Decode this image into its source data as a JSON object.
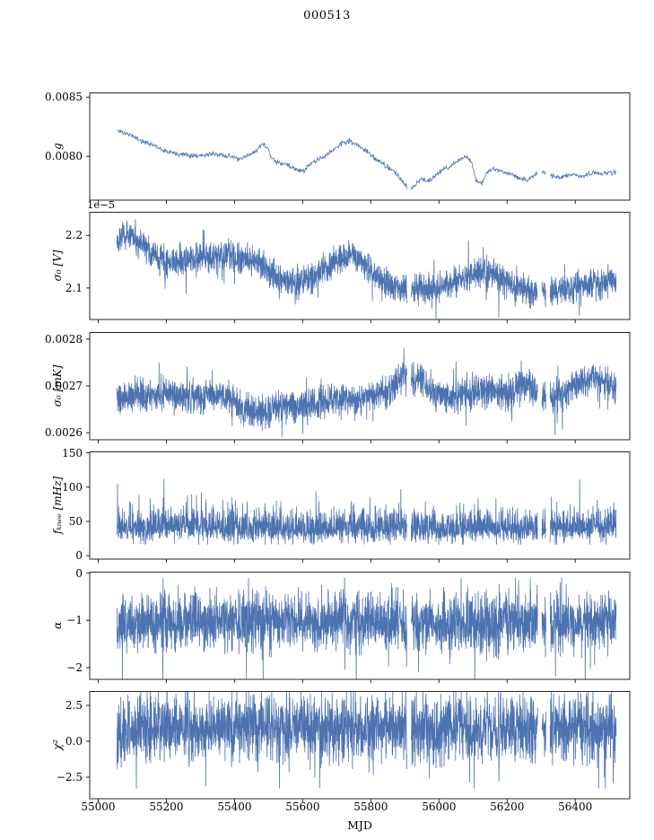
{
  "chart_data": {
    "type": "line",
    "title": "000513",
    "xlabel": "MJD",
    "line_color": "#4c72b0",
    "xlim": [
      54975,
      56560
    ],
    "xticks": [
      55000,
      55200,
      55400,
      55600,
      55800,
      56000,
      56200,
      56400
    ],
    "xtick_labels": [
      "55000",
      "55200",
      "55400",
      "55600",
      "55800",
      "56000",
      "56200",
      "56400"
    ],
    "x_range_of_data": [
      55055,
      56520
    ],
    "gaps": [
      [
        55906,
        55918
      ],
      [
        56290,
        56302
      ],
      [
        56314,
        56326
      ]
    ],
    "panels": [
      {
        "ylabel": "g",
        "offset_text": "",
        "yticks": [
          0.0085,
          0.008
        ],
        "ytick_labels": [
          "0.0085",
          "0.0080"
        ],
        "ylim": [
          0.00763,
          0.00854
        ],
        "noise_amp": 1e-05,
        "tail_prob": 0.02,
        "samples": 900,
        "seed": 11,
        "trend": [
          [
            55055,
            0.00822
          ],
          [
            55075,
            0.0082
          ],
          [
            55095,
            0.00818
          ],
          [
            55115,
            0.00815
          ],
          [
            55135,
            0.00812
          ],
          [
            55160,
            0.0081
          ],
          [
            55185,
            0.00806
          ],
          [
            55210,
            0.00804
          ],
          [
            55240,
            0.00802
          ],
          [
            55270,
            0.00801
          ],
          [
            55300,
            0.00801
          ],
          [
            55330,
            0.00802
          ],
          [
            55360,
            0.00801
          ],
          [
            55390,
            0.008
          ],
          [
            55415,
            0.00797
          ],
          [
            55435,
            0.008
          ],
          [
            55460,
            0.00804
          ],
          [
            55480,
            0.0081
          ],
          [
            55495,
            0.00808
          ],
          [
            55510,
            0.00798
          ],
          [
            55530,
            0.00794
          ],
          [
            55555,
            0.00793
          ],
          [
            55580,
            0.00789
          ],
          [
            55600,
            0.00787
          ],
          [
            55620,
            0.00793
          ],
          [
            55645,
            0.00797
          ],
          [
            55670,
            0.00801
          ],
          [
            55695,
            0.00807
          ],
          [
            55720,
            0.00812
          ],
          [
            55745,
            0.00812
          ],
          [
            55765,
            0.00809
          ],
          [
            55790,
            0.00804
          ],
          [
            55815,
            0.00797
          ],
          [
            55840,
            0.00793
          ],
          [
            55865,
            0.00788
          ],
          [
            55885,
            0.00782
          ],
          [
            55900,
            0.00775
          ],
          [
            55915,
            0.00772
          ],
          [
            55930,
            0.00776
          ],
          [
            55950,
            0.00781
          ],
          [
            55970,
            0.00779
          ],
          [
            55990,
            0.00784
          ],
          [
            56010,
            0.00788
          ],
          [
            56035,
            0.00792
          ],
          [
            56060,
            0.00797
          ],
          [
            56080,
            0.008
          ],
          [
            56095,
            0.00795
          ],
          [
            56110,
            0.00779
          ],
          [
            56125,
            0.00777
          ],
          [
            56140,
            0.00786
          ],
          [
            56160,
            0.0079
          ],
          [
            56180,
            0.00788
          ],
          [
            56200,
            0.00786
          ],
          [
            56220,
            0.00784
          ],
          [
            56240,
            0.00781
          ],
          [
            56260,
            0.0078
          ],
          [
            56280,
            0.00784
          ],
          [
            56300,
            0.00786
          ],
          [
            56320,
            0.00784
          ],
          [
            56340,
            0.00783
          ],
          [
            56360,
            0.00782
          ],
          [
            56380,
            0.00784
          ],
          [
            56400,
            0.00785
          ],
          [
            56420,
            0.00783
          ],
          [
            56440,
            0.00785
          ],
          [
            56460,
            0.00786
          ],
          [
            56480,
            0.00785
          ],
          [
            56500,
            0.00786
          ],
          [
            56520,
            0.00787
          ]
        ]
      },
      {
        "ylabel": "σ₀ [V]",
        "offset_text": "1e−5",
        "unit_scale": "1e-5",
        "yticks": [
          2.2,
          2.1
        ],
        "ytick_labels": [
          "2.2",
          "2.1"
        ],
        "ylim": [
          2.04,
          2.245
        ],
        "noise_amp": 0.014,
        "tail_prob": 0.04,
        "samples": 2600,
        "seed": 22,
        "trend": [
          [
            55055,
            2.195
          ],
          [
            55075,
            2.205
          ],
          [
            55095,
            2.2
          ],
          [
            55115,
            2.19
          ],
          [
            55140,
            2.175
          ],
          [
            55165,
            2.16
          ],
          [
            55190,
            2.15
          ],
          [
            55215,
            2.148
          ],
          [
            55240,
            2.15
          ],
          [
            55265,
            2.152
          ],
          [
            55290,
            2.155
          ],
          [
            55320,
            2.158
          ],
          [
            55350,
            2.16
          ],
          [
            55380,
            2.162
          ],
          [
            55410,
            2.158
          ],
          [
            55440,
            2.152
          ],
          [
            55470,
            2.148
          ],
          [
            55500,
            2.133
          ],
          [
            55530,
            2.12
          ],
          [
            55560,
            2.112
          ],
          [
            55590,
            2.11
          ],
          [
            55620,
            2.118
          ],
          [
            55650,
            2.132
          ],
          [
            55680,
            2.145
          ],
          [
            55710,
            2.155
          ],
          [
            55740,
            2.162
          ],
          [
            55765,
            2.155
          ],
          [
            55790,
            2.138
          ],
          [
            55815,
            2.125
          ],
          [
            55840,
            2.113
          ],
          [
            55865,
            2.105
          ],
          [
            55890,
            2.1
          ],
          [
            55920,
            2.103
          ],
          [
            55950,
            2.1
          ],
          [
            55980,
            2.098
          ],
          [
            56010,
            2.102
          ],
          [
            56040,
            2.112
          ],
          [
            56070,
            2.122
          ],
          [
            56100,
            2.128
          ],
          [
            56130,
            2.13
          ],
          [
            56160,
            2.125
          ],
          [
            56190,
            2.113
          ],
          [
            56220,
            2.103
          ],
          [
            56250,
            2.098
          ],
          [
            56280,
            2.094
          ],
          [
            56310,
            2.09
          ],
          [
            56340,
            2.093
          ],
          [
            56370,
            2.097
          ],
          [
            56400,
            2.1
          ],
          [
            56430,
            2.103
          ],
          [
            56460,
            2.108
          ],
          [
            56490,
            2.11
          ],
          [
            56520,
            2.112
          ]
        ]
      },
      {
        "ylabel": "σ₀ [mK]",
        "offset_text": "",
        "yticks": [
          0.0028,
          0.0027,
          0.0026
        ],
        "ytick_labels": [
          "0.0028",
          "0.0027",
          "0.0026"
        ],
        "ylim": [
          0.002585,
          0.002815
        ],
        "noise_amp": 1.7e-05,
        "tail_prob": 0.05,
        "samples": 2600,
        "seed": 33,
        "trend": [
          [
            55055,
            0.00267
          ],
          [
            55100,
            0.002675
          ],
          [
            55150,
            0.00268
          ],
          [
            55200,
            0.002685
          ],
          [
            55250,
            0.00268
          ],
          [
            55300,
            0.002678
          ],
          [
            55350,
            0.002682
          ],
          [
            55400,
            0.00267
          ],
          [
            55430,
            0.00265
          ],
          [
            55460,
            0.00264
          ],
          [
            55500,
            0.00265
          ],
          [
            55540,
            0.00266
          ],
          [
            55580,
            0.002655
          ],
          [
            55620,
            0.00266
          ],
          [
            55660,
            0.002665
          ],
          [
            55700,
            0.00267
          ],
          [
            55740,
            0.002668
          ],
          [
            55780,
            0.00267
          ],
          [
            55820,
            0.00268
          ],
          [
            55860,
            0.00269
          ],
          [
            55890,
            0.00272
          ],
          [
            55910,
            0.00273
          ],
          [
            55930,
            0.00271
          ],
          [
            55950,
            0.00272
          ],
          [
            55970,
            0.00269
          ],
          [
            56000,
            0.00268
          ],
          [
            56040,
            0.002675
          ],
          [
            56080,
            0.00268
          ],
          [
            56120,
            0.00269
          ],
          [
            56160,
            0.002695
          ],
          [
            56200,
            0.00268
          ],
          [
            56230,
            0.0027
          ],
          [
            56260,
            0.00271
          ],
          [
            56290,
            0.00268
          ],
          [
            56320,
            0.00267
          ],
          [
            56360,
            0.00268
          ],
          [
            56400,
            0.0027
          ],
          [
            56430,
            0.00271
          ],
          [
            56460,
            0.00272
          ],
          [
            56490,
            0.00271
          ],
          [
            56520,
            0.00269
          ]
        ]
      },
      {
        "ylabel": "fₖₙₑₑ [mHz]",
        "offset_text": "",
        "yticks": [
          150,
          100,
          50,
          0
        ],
        "ytick_labels": [
          "150",
          "100",
          "50",
          "0"
        ],
        "ylim": [
          -5,
          152
        ],
        "noise_amp": 9,
        "skew_up": 1.7,
        "clamp": [
          16,
          145
        ],
        "tail_prob": 0.05,
        "samples": 2600,
        "seed": 44,
        "spikes": [
          [
            55060,
            72
          ],
          [
            55193,
            112
          ],
          [
            55262,
            88
          ],
          [
            55888,
            97
          ],
          [
            55910,
            88
          ],
          [
            56330,
            86
          ]
        ],
        "trend": [
          [
            55055,
            38
          ],
          [
            55150,
            40
          ],
          [
            55200,
            42
          ],
          [
            55260,
            44
          ],
          [
            55320,
            42
          ],
          [
            55400,
            40
          ],
          [
            55500,
            38
          ],
          [
            55600,
            37
          ],
          [
            55700,
            39
          ],
          [
            55800,
            38
          ],
          [
            55880,
            42
          ],
          [
            55960,
            40
          ],
          [
            56050,
            39
          ],
          [
            56150,
            40
          ],
          [
            56250,
            39
          ],
          [
            56350,
            40
          ],
          [
            56450,
            41
          ],
          [
            56520,
            40
          ]
        ]
      },
      {
        "ylabel": "α",
        "offset_text": "",
        "yticks": [
          0,
          -1,
          -2
        ],
        "ytick_labels": [
          "0",
          "−1",
          "−2"
        ],
        "ylim": [
          -2.25,
          0.03
        ],
        "noise_amp": 0.29,
        "clamp": [
          -2.45,
          -0.1
        ],
        "tail_prob": 0.06,
        "samples": 2600,
        "seed": 55,
        "spikes": [
          [
            55235,
            -0.25
          ],
          [
            55940,
            -2.1
          ],
          [
            56105,
            -2.4
          ]
        ],
        "trend": [
          [
            55055,
            -1.05
          ],
          [
            55800,
            -1.02
          ],
          [
            56100,
            -1.08
          ],
          [
            56520,
            -1.03
          ]
        ]
      },
      {
        "ylabel": "χ²",
        "offset_text": "",
        "yticks": [
          2.5,
          0.0,
          -2.5
        ],
        "ytick_labels": [
          "2.5",
          "0.0",
          "−2.5"
        ],
        "ylim": [
          -4.0,
          3.5
        ],
        "noise_amp": 1.1,
        "clamp": [
          -3.3,
          3.45
        ],
        "tail_prob": 0.06,
        "samples": 2600,
        "seed": 66,
        "trend": [
          [
            55055,
            0.9
          ],
          [
            55800,
            0.95
          ],
          [
            56200,
            0.85
          ],
          [
            56520,
            0.9
          ]
        ]
      }
    ]
  }
}
